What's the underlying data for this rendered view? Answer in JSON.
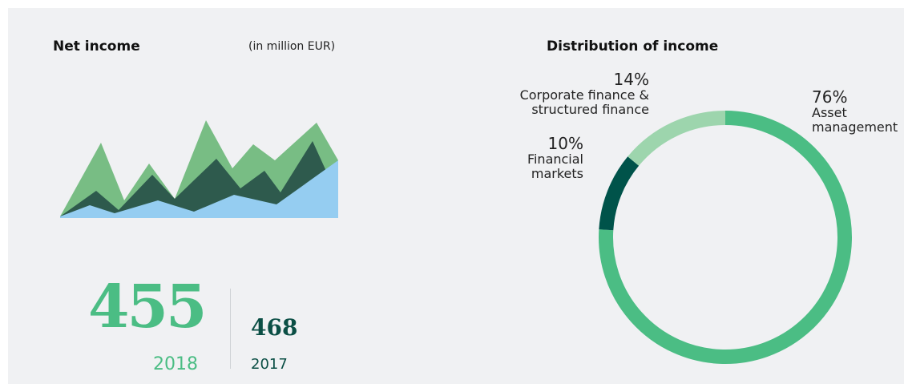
{
  "net_income": {
    "title": "Net income",
    "unit": "(in million EUR)",
    "current": {
      "value": 455,
      "year": 2018
    },
    "previous": {
      "value": 468,
      "year": 2017
    }
  },
  "chart_data": {
    "type": "donut",
    "title": "Distribution of income",
    "series": [
      {
        "name": "Asset management",
        "color": "#4bbd84",
        "value": 76,
        "value_label": "76%"
      },
      {
        "name": "Financial markets",
        "color": "#00534a",
        "value": 10,
        "value_label": "10%"
      },
      {
        "name": "Corporate finance & structured finance",
        "color": "#9dd5ad",
        "value": 14,
        "value_label": "14%"
      }
    ]
  }
}
